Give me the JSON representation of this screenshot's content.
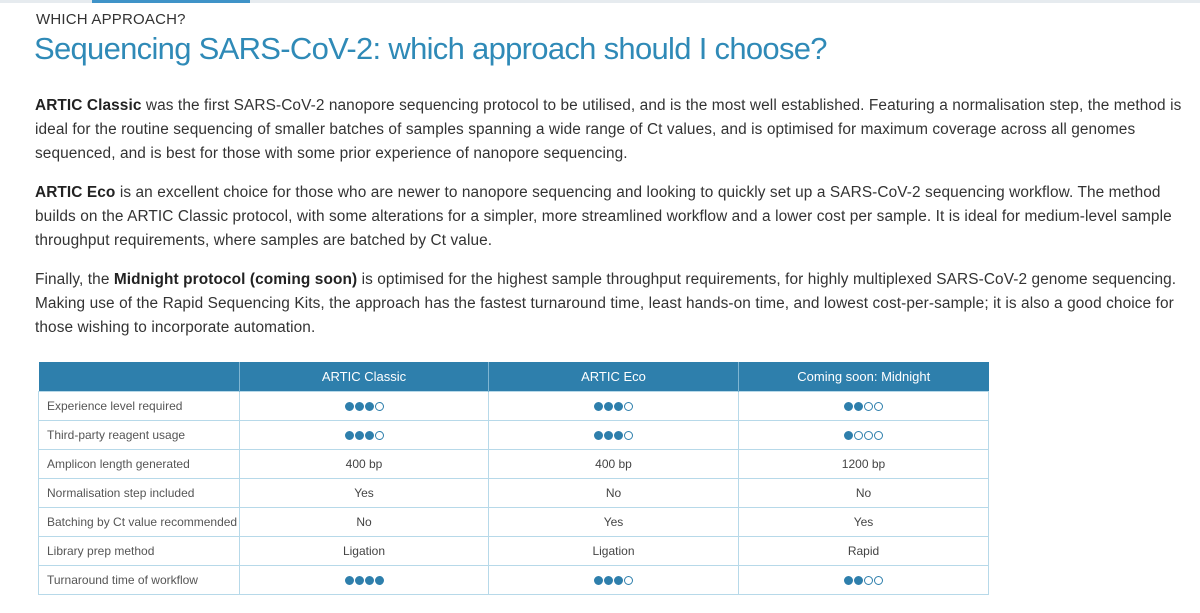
{
  "eyebrow": "WHICH APPROACH?",
  "title": "Sequencing SARS-CoV-2: which approach should I choose?",
  "paragraphs": [
    {
      "bold": "ARTIC Classic",
      "before": "",
      "after": " was the first SARS-CoV-2 nanopore sequencing protocol to be utilised, and is the most well established. Featuring a normalisation step, the method is ideal for the routine sequencing of smaller batches of samples spanning a wide range of Ct values, and is optimised for maximum coverage across all genomes sequenced, and is best for those with some prior experience of nanopore sequencing."
    },
    {
      "bold": "ARTIC Eco",
      "before": "",
      "after": " is an excellent choice for those who are newer to nanopore sequencing and looking to quickly set up a SARS-CoV-2 sequencing workflow. The method builds on the ARTIC Classic protocol, with some alterations for a simpler, more streamlined workflow and a lower cost per sample. It is ideal for medium-level sample throughput requirements, where samples are batched by Ct value."
    },
    {
      "bold": "Midnight protocol (coming soon)",
      "before": "Finally, the ",
      "after": " is optimised for the highest sample throughput requirements, for highly multiplexed SARS-CoV-2 genome sequencing. Making use of the Rapid Sequencing Kits, the approach has the fastest turnaround time, least hands-on time, and lowest cost-per-sample; it is also a good choice for those wishing to incorporate automation."
    }
  ],
  "table": {
    "headers": [
      "",
      "ARTIC Classic",
      "ARTIC Eco",
      "Coming soon: Midnight"
    ],
    "rows": [
      {
        "label": "Experience level required",
        "cells": [
          {
            "dots": [
              3,
              4
            ]
          },
          {
            "dots": [
              3,
              4
            ]
          },
          {
            "dots": [
              2,
              4
            ]
          }
        ]
      },
      {
        "label": "Third-party reagent usage",
        "cells": [
          {
            "dots": [
              3,
              4
            ]
          },
          {
            "dots": [
              3,
              4
            ]
          },
          {
            "dots": [
              1,
              4
            ]
          }
        ]
      },
      {
        "label": "Amplicon length generated",
        "cells": [
          {
            "text": "400 bp"
          },
          {
            "text": "400 bp"
          },
          {
            "text": "1200 bp"
          }
        ]
      },
      {
        "label": "Normalisation step included",
        "cells": [
          {
            "text": "Yes"
          },
          {
            "text": "No"
          },
          {
            "text": "No"
          }
        ]
      },
      {
        "label": "Batching by Ct value recommended",
        "cells": [
          {
            "text": "No"
          },
          {
            "text": "Yes"
          },
          {
            "text": "Yes"
          }
        ]
      },
      {
        "label": "Library prep method",
        "cells": [
          {
            "text": "Ligation"
          },
          {
            "text": "Ligation"
          },
          {
            "text": "Rapid"
          }
        ]
      },
      {
        "label": "Turnaround time of workflow",
        "cells": [
          {
            "dots": [
              4,
              4
            ]
          },
          {
            "dots": [
              3,
              4
            ]
          },
          {
            "dots": [
              2,
              4
            ]
          }
        ]
      }
    ]
  },
  "colors": {
    "accent": "#2e7fac",
    "title": "#2f8ab7",
    "border": "#b7d9e9"
  }
}
